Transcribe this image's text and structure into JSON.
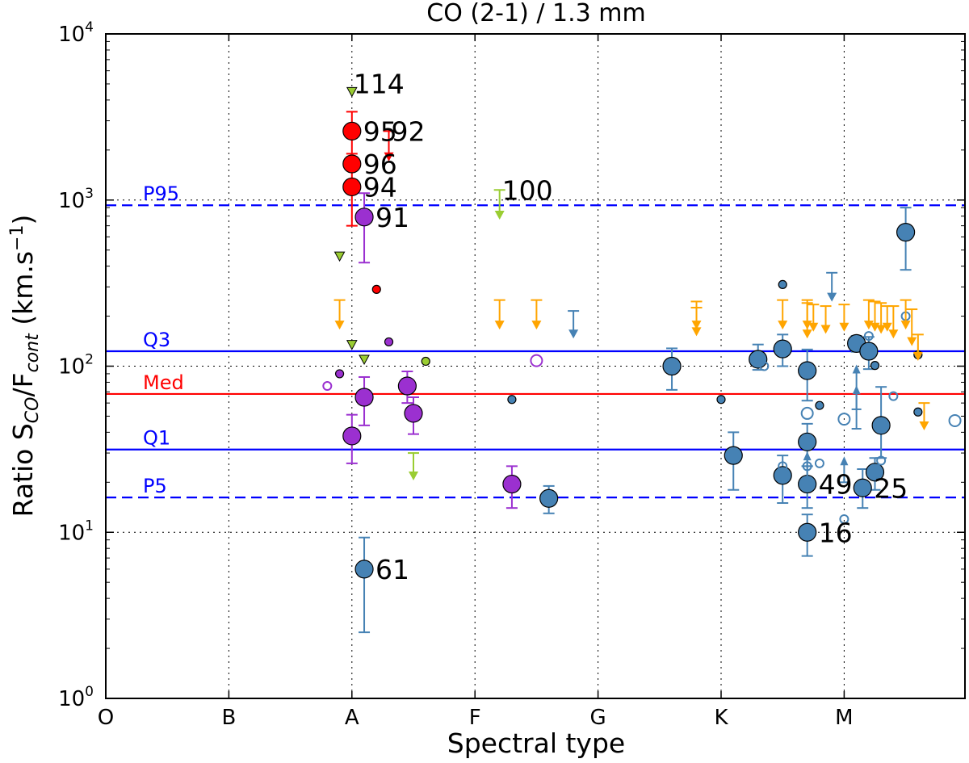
{
  "chart_data": {
    "type": "scatter",
    "title": "CO (2-1) / 1.3 mm",
    "xlabel": "Spectral type",
    "ylabel": {
      "base": "Ratio S",
      "sub1": "CO",
      "mid": "/F",
      "sub2": "cont",
      "unit_open": " (km.s",
      "unit_sup": "−1",
      "unit_close": ")"
    },
    "x_categories": [
      "O",
      "B",
      "A",
      "F",
      "G",
      "K",
      "M"
    ],
    "x_range": [
      0,
      7
    ],
    "y_scale": "log",
    "y_range": [
      1,
      10000
    ],
    "y_tick_labels": [
      {
        "base": "10",
        "exp": "0",
        "value": 1
      },
      {
        "base": "10",
        "exp": "1",
        "value": 10
      },
      {
        "base": "10",
        "exp": "2",
        "value": 100
      },
      {
        "base": "10",
        "exp": "3",
        "value": 1000
      },
      {
        "base": "10",
        "exp": "4",
        "value": 10000
      }
    ],
    "grid": true,
    "colors": {
      "steelblue": "#4682b4",
      "red": "#ff0000",
      "purple": "#9b30d0",
      "green": "#9acd32",
      "orange": "#ffa500",
      "median_line": "#ff0000",
      "quartile_line": "#0000ff"
    },
    "reference_lines": [
      {
        "label": "P95",
        "value": 930,
        "style": "dashed",
        "color": "#0000ff"
      },
      {
        "label": "Q3",
        "value": 123,
        "style": "solid",
        "color": "#0000ff"
      },
      {
        "label": "Med",
        "value": 68,
        "style": "solid",
        "color": "#ff0000"
      },
      {
        "label": "Q1",
        "value": 31.5,
        "style": "solid",
        "color": "#0000ff"
      },
      {
        "label": "P5",
        "value": 16.2,
        "style": "dashed",
        "color": "#0000ff"
      }
    ],
    "detections": [
      {
        "x": 2.0,
        "y": 2600,
        "color": "red",
        "size": "L",
        "err": [
          1900,
          3400
        ],
        "label": "95"
      },
      {
        "x": 2.0,
        "y": 1650,
        "color": "red",
        "size": "L",
        "label": "96"
      },
      {
        "x": 2.0,
        "y": 1200,
        "color": "red",
        "size": "L",
        "err": [
          700,
          1650
        ],
        "label": "94"
      },
      {
        "x": 2.1,
        "y": 790,
        "color": "purple",
        "size": "L",
        "err": [
          420,
          1100
        ],
        "label": "91"
      },
      {
        "x": 2.1,
        "y": 65,
        "color": "purple",
        "size": "L",
        "err": [
          44,
          86
        ]
      },
      {
        "x": 2.0,
        "y": 38,
        "color": "purple",
        "size": "L",
        "err": [
          26,
          51
        ]
      },
      {
        "x": 2.45,
        "y": 76,
        "color": "purple",
        "size": "L",
        "err": [
          60,
          93
        ]
      },
      {
        "x": 2.5,
        "y": 52,
        "color": "purple",
        "size": "L",
        "err": [
          39,
          65
        ]
      },
      {
        "x": 3.3,
        "y": 19.5,
        "color": "purple",
        "size": "L",
        "err": [
          14,
          25
        ]
      },
      {
        "x": 2.1,
        "y": 6,
        "color": "steelblue",
        "size": "L",
        "err": [
          2.5,
          9.3
        ],
        "label": "61"
      },
      {
        "x": 3.6,
        "y": 16,
        "color": "steelblue",
        "size": "L",
        "err": [
          13,
          19
        ]
      },
      {
        "x": 4.6,
        "y": 100,
        "color": "steelblue",
        "size": "L",
        "err": [
          72,
          128
        ]
      },
      {
        "x": 5.1,
        "y": 29,
        "color": "steelblue",
        "size": "L",
        "err": [
          18,
          40
        ]
      },
      {
        "x": 5.3,
        "y": 110,
        "color": "steelblue",
        "size": "L",
        "err": [
          95,
          135
        ]
      },
      {
        "x": 5.5,
        "y": 127,
        "color": "steelblue",
        "size": "L",
        "err": [
          100,
          155
        ]
      },
      {
        "x": 5.5,
        "y": 22,
        "color": "steelblue",
        "size": "L",
        "err": [
          15,
          29
        ]
      },
      {
        "x": 5.7,
        "y": 94,
        "color": "steelblue",
        "size": "L",
        "err": [
          62,
          126
        ]
      },
      {
        "x": 5.7,
        "y": 35,
        "color": "steelblue",
        "size": "L",
        "err": [
          25,
          45
        ]
      },
      {
        "x": 5.7,
        "y": 19.5,
        "color": "steelblue",
        "size": "L",
        "err": [
          14,
          25
        ],
        "label": "49"
      },
      {
        "x": 5.7,
        "y": 10,
        "color": "steelblue",
        "size": "L",
        "err": [
          7.2,
          12.8
        ],
        "label": "16"
      },
      {
        "x": 6.1,
        "y": 137,
        "color": "steelblue",
        "size": "L",
        "err": [
          122,
          152
        ]
      },
      {
        "x": 6.2,
        "y": 123,
        "color": "steelblue",
        "size": "L",
        "err": [
          96,
          150
        ]
      },
      {
        "x": 6.15,
        "y": 18.5,
        "color": "steelblue",
        "size": "L",
        "err": [
          14,
          24
        ],
        "label": "25"
      },
      {
        "x": 6.25,
        "y": 23,
        "color": "steelblue",
        "size": "L",
        "err": [
          18,
          28
        ]
      },
      {
        "x": 6.3,
        "y": 44,
        "color": "steelblue",
        "size": "L",
        "err": [
          28,
          75
        ]
      },
      {
        "x": 6.5,
        "y": 640,
        "color": "steelblue",
        "size": "L",
        "err": [
          380,
          900
        ]
      },
      {
        "x": 2.2,
        "y": 290,
        "color": "red",
        "size": "S"
      },
      {
        "x": 1.9,
        "y": 90,
        "color": "purple",
        "size": "S"
      },
      {
        "x": 2.3,
        "y": 140,
        "color": "purple",
        "size": "S"
      },
      {
        "x": 2.6,
        "y": 107,
        "color": "green",
        "size": "S"
      },
      {
        "x": 3.3,
        "y": 63,
        "color": "steelblue",
        "size": "S"
      },
      {
        "x": 5.0,
        "y": 63,
        "color": "steelblue",
        "size": "S"
      },
      {
        "x": 5.5,
        "y": 310,
        "color": "steelblue",
        "size": "S"
      },
      {
        "x": 5.8,
        "y": 58,
        "color": "steelblue",
        "size": "S"
      },
      {
        "x": 6.25,
        "y": 101,
        "color": "steelblue",
        "size": "S"
      },
      {
        "x": 6.6,
        "y": 53,
        "color": "steelblue",
        "size": "S"
      },
      {
        "x": 6.6,
        "y": 117,
        "color": "steelblue",
        "size": "S"
      }
    ],
    "open_points": [
      {
        "x": 1.8,
        "y": 76,
        "color": "purple",
        "size": "S"
      },
      {
        "x": 3.5,
        "y": 108,
        "color": "purple",
        "size": "M"
      },
      {
        "x": 6.0,
        "y": 48,
        "color": "steelblue",
        "size": "M"
      },
      {
        "x": 6.9,
        "y": 47,
        "color": "steelblue",
        "size": "M"
      },
      {
        "x": 5.7,
        "y": 52,
        "color": "steelblue",
        "size": "M"
      },
      {
        "x": 5.5,
        "y": 25,
        "color": "steelblue",
        "size": "S"
      },
      {
        "x": 5.7,
        "y": 25,
        "color": "steelblue",
        "size": "S"
      },
      {
        "x": 5.8,
        "y": 26,
        "color": "steelblue",
        "size": "S"
      },
      {
        "x": 5.35,
        "y": 100,
        "color": "steelblue",
        "size": "S"
      },
      {
        "x": 6.2,
        "y": 152,
        "color": "steelblue",
        "size": "S"
      },
      {
        "x": 6.5,
        "y": 200,
        "color": "steelblue",
        "size": "S"
      },
      {
        "x": 6.4,
        "y": 66,
        "color": "steelblue",
        "size": "S"
      },
      {
        "x": 6.3,
        "y": 27,
        "color": "steelblue",
        "size": "S"
      },
      {
        "x": 6.0,
        "y": 12,
        "color": "steelblue",
        "size": "S"
      }
    ],
    "upper_limits": [
      {
        "x": 2.0,
        "y": 4500,
        "color": "green",
        "marker": "triangle",
        "label": "114"
      },
      {
        "x": 1.9,
        "y": 460,
        "color": "green",
        "marker": "triangle"
      },
      {
        "x": 2.0,
        "y": 135,
        "color": "green",
        "marker": "triangle"
      },
      {
        "x": 2.1,
        "y": 110,
        "color": "green",
        "marker": "triangle"
      },
      {
        "x": 2.3,
        "y": 2600,
        "color": "red",
        "marker": "arrow",
        "tip": 1750,
        "label": "92"
      },
      {
        "x": 3.2,
        "y": 1150,
        "color": "green",
        "marker": "arrow",
        "tip": 780,
        "label": "100"
      },
      {
        "x": 2.5,
        "y": 30,
        "color": "green",
        "marker": "arrow",
        "tip": 21
      },
      {
        "x": 1.9,
        "y": 250,
        "color": "orange",
        "marker": "arrow",
        "tip": 170
      },
      {
        "x": 3.2,
        "y": 250,
        "color": "orange",
        "marker": "arrow",
        "tip": 170
      },
      {
        "x": 3.5,
        "y": 250,
        "color": "orange",
        "marker": "arrow",
        "tip": 170
      },
      {
        "x": 3.8,
        "y": 215,
        "color": "steelblue",
        "marker": "arrow",
        "tip": 150
      },
      {
        "x": 4.8,
        "y": 245,
        "color": "orange",
        "marker": "arrow",
        "tip": 155
      },
      {
        "x": 4.8,
        "y": 225,
        "color": "orange",
        "marker": "arrow",
        "tip": 170
      },
      {
        "x": 5.5,
        "y": 250,
        "color": "orange",
        "marker": "arrow",
        "tip": 170
      },
      {
        "x": 5.7,
        "y": 250,
        "color": "orange",
        "marker": "arrow",
        "tip": 170
      },
      {
        "x": 5.7,
        "y": 240,
        "color": "orange",
        "marker": "arrow",
        "tip": 150
      },
      {
        "x": 5.75,
        "y": 235,
        "color": "orange",
        "marker": "arrow",
        "tip": 165
      },
      {
        "x": 5.85,
        "y": 230,
        "color": "orange",
        "marker": "arrow",
        "tip": 160
      },
      {
        "x": 5.9,
        "y": 365,
        "color": "steelblue",
        "marker": "arrow",
        "tip": 250
      },
      {
        "x": 6.0,
        "y": 235,
        "color": "orange",
        "marker": "arrow",
        "tip": 165
      },
      {
        "x": 6.2,
        "y": 250,
        "color": "orange",
        "marker": "arrow",
        "tip": 170
      },
      {
        "x": 6.25,
        "y": 245,
        "color": "orange",
        "marker": "arrow",
        "tip": 165
      },
      {
        "x": 6.3,
        "y": 240,
        "color": "orange",
        "marker": "arrow",
        "tip": 160
      },
      {
        "x": 6.35,
        "y": 230,
        "color": "orange",
        "marker": "arrow",
        "tip": 165
      },
      {
        "x": 6.4,
        "y": 230,
        "color": "orange",
        "marker": "arrow",
        "tip": 150
      },
      {
        "x": 6.5,
        "y": 250,
        "color": "orange",
        "marker": "arrow",
        "tip": 170
      },
      {
        "x": 6.55,
        "y": 220,
        "color": "orange",
        "marker": "arrow",
        "tip": 135
      },
      {
        "x": 6.6,
        "y": 155,
        "color": "orange",
        "marker": "arrow",
        "tip": 110
      },
      {
        "x": 6.65,
        "y": 60,
        "color": "orange",
        "marker": "arrow",
        "tip": 42
      }
    ],
    "lower_limits": [
      {
        "x": 5.7,
        "y": 21,
        "tip": 30,
        "color": "steelblue"
      },
      {
        "x": 6.0,
        "y": 20,
        "tip": 28,
        "color": "steelblue"
      },
      {
        "x": 6.1,
        "y": 55,
        "tip": 100,
        "color": "steelblue"
      },
      {
        "x": 6.1,
        "y": 42,
        "tip": 75,
        "color": "steelblue"
      }
    ]
  }
}
